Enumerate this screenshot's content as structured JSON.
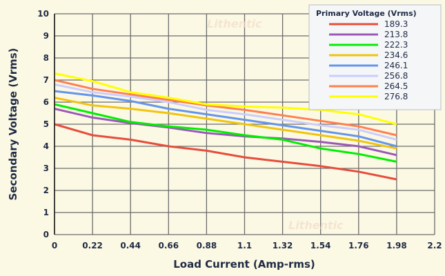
{
  "chart_data": {
    "type": "line",
    "title": "",
    "xlabel": "Load Current (Amp-rms)",
    "ylabel": "Secondary Voltage (Vrms)",
    "xlim": [
      0,
      2.2
    ],
    "ylim": [
      0,
      10
    ],
    "xticks": [
      "0",
      "0.22",
      "0.44",
      "0.66",
      "0.88",
      "1.1",
      "1.32",
      "1.54",
      "1.76",
      "1.98",
      "2.2"
    ],
    "yticks": [
      "0",
      "1",
      "2",
      "3",
      "4",
      "5",
      "6",
      "7",
      "8",
      "9",
      "10"
    ],
    "grid": true,
    "legend_title": "Primary Voltage (Vrms)",
    "legend_position": "top-right",
    "watermark": "Lithentic",
    "x": [
      0,
      0.22,
      0.44,
      0.66,
      0.88,
      1.1,
      1.32,
      1.54,
      1.76,
      1.98
    ],
    "series": [
      {
        "name": "189.3",
        "color": "#e74c3c",
        "values": [
          5.0,
          4.5,
          4.3,
          4.0,
          3.8,
          3.5,
          3.3,
          3.1,
          2.85,
          2.5
        ]
      },
      {
        "name": "213.8",
        "color": "#9b59b6",
        "values": [
          5.7,
          5.3,
          5.05,
          4.85,
          4.6,
          4.45,
          4.35,
          4.2,
          4.0,
          3.6
        ]
      },
      {
        "name": "222.3",
        "color": "#00ee00",
        "values": [
          5.9,
          5.5,
          5.1,
          4.9,
          4.75,
          4.5,
          4.3,
          3.9,
          3.65,
          3.3
        ]
      },
      {
        "name": "234.6",
        "color": "#f1c40f",
        "values": [
          6.2,
          5.85,
          5.7,
          5.5,
          5.25,
          5.0,
          4.75,
          4.5,
          4.25,
          3.9
        ]
      },
      {
        "name": "246.1",
        "color": "#6495ed",
        "values": [
          6.5,
          6.3,
          6.05,
          5.7,
          5.45,
          5.2,
          4.95,
          4.7,
          4.45,
          4.0
        ]
      },
      {
        "name": "256.8",
        "color": "#ccccff",
        "values": [
          6.8,
          6.45,
          6.25,
          6.0,
          5.65,
          5.45,
          5.2,
          4.95,
          4.75,
          4.3
        ]
      },
      {
        "name": "264.5",
        "color": "#ff7f50",
        "values": [
          7.0,
          6.6,
          6.35,
          6.1,
          5.85,
          5.65,
          5.4,
          5.15,
          4.9,
          4.5
        ]
      },
      {
        "name": "276.8",
        "color": "#ffff00",
        "values": [
          7.3,
          6.95,
          6.45,
          6.2,
          5.9,
          5.8,
          5.75,
          5.65,
          5.45,
          5.0
        ]
      }
    ]
  }
}
